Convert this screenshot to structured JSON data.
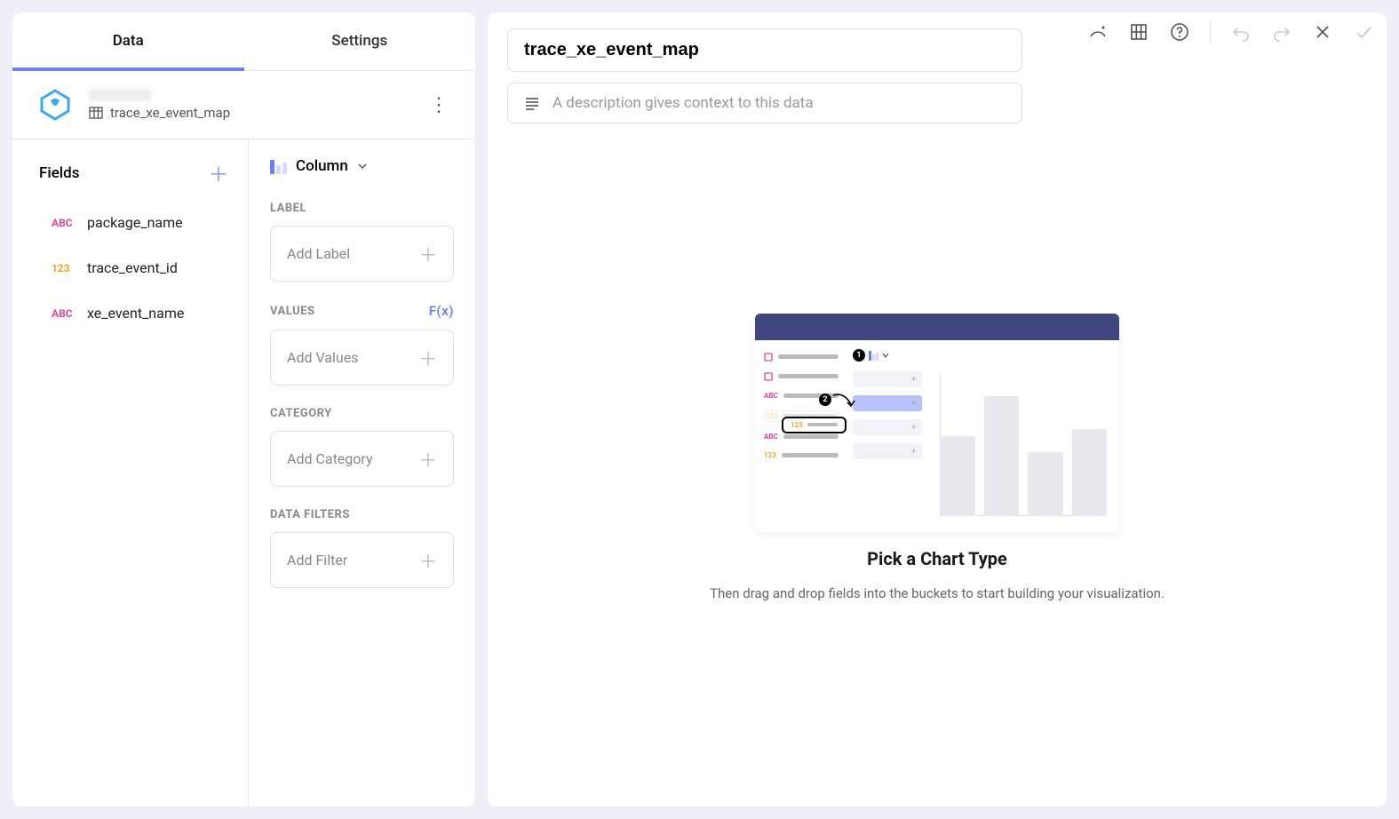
{
  "tabs": {
    "data": "Data",
    "settings": "Settings",
    "active": "data"
  },
  "datasource": {
    "table_name": "trace_xe_event_map"
  },
  "fields": {
    "header": "Fields",
    "items": [
      {
        "type": "ABC",
        "name": "package_name"
      },
      {
        "type": "123",
        "name": "trace_event_id"
      },
      {
        "type": "ABC",
        "name": "xe_event_name"
      }
    ]
  },
  "chart_type": {
    "label": "Column"
  },
  "config_sections": {
    "label": {
      "title": "LABEL",
      "placeholder": "Add Label"
    },
    "values": {
      "title": "VALUES",
      "fx": "F(x)",
      "placeholder": "Add Values"
    },
    "category": {
      "title": "CATEGORY",
      "placeholder": "Add Category"
    },
    "filters": {
      "title": "DATA FILTERS",
      "placeholder": "Add Filter"
    }
  },
  "title_input": {
    "value": "trace_xe_event_map"
  },
  "description": {
    "placeholder": "A description gives context to this data"
  },
  "placeholder": {
    "heading": "Pick a Chart Type",
    "sub": "Then drag and drop fields into the buckets to start building your visualization.",
    "chart_bars": [
      90,
      135,
      72,
      98
    ],
    "bar_color": "#e8e9ee",
    "header_color": "#3f477e",
    "field_rows": [
      {
        "type": "☐",
        "color": "#e845a2"
      },
      {
        "type": "☐",
        "color": "#e845a2"
      },
      {
        "type": "ABC",
        "color": "#e845a2"
      },
      {
        "type": "123",
        "color": "#f5a623",
        "highlighted": true
      },
      {
        "type": "ABC",
        "color": "#e845a2"
      },
      {
        "type": "123",
        "color": "#f5a623"
      }
    ]
  },
  "colors": {
    "accent": "#6b7fff",
    "abc": "#e845a2",
    "num": "#f5a623",
    "border": "#dde0ea"
  }
}
